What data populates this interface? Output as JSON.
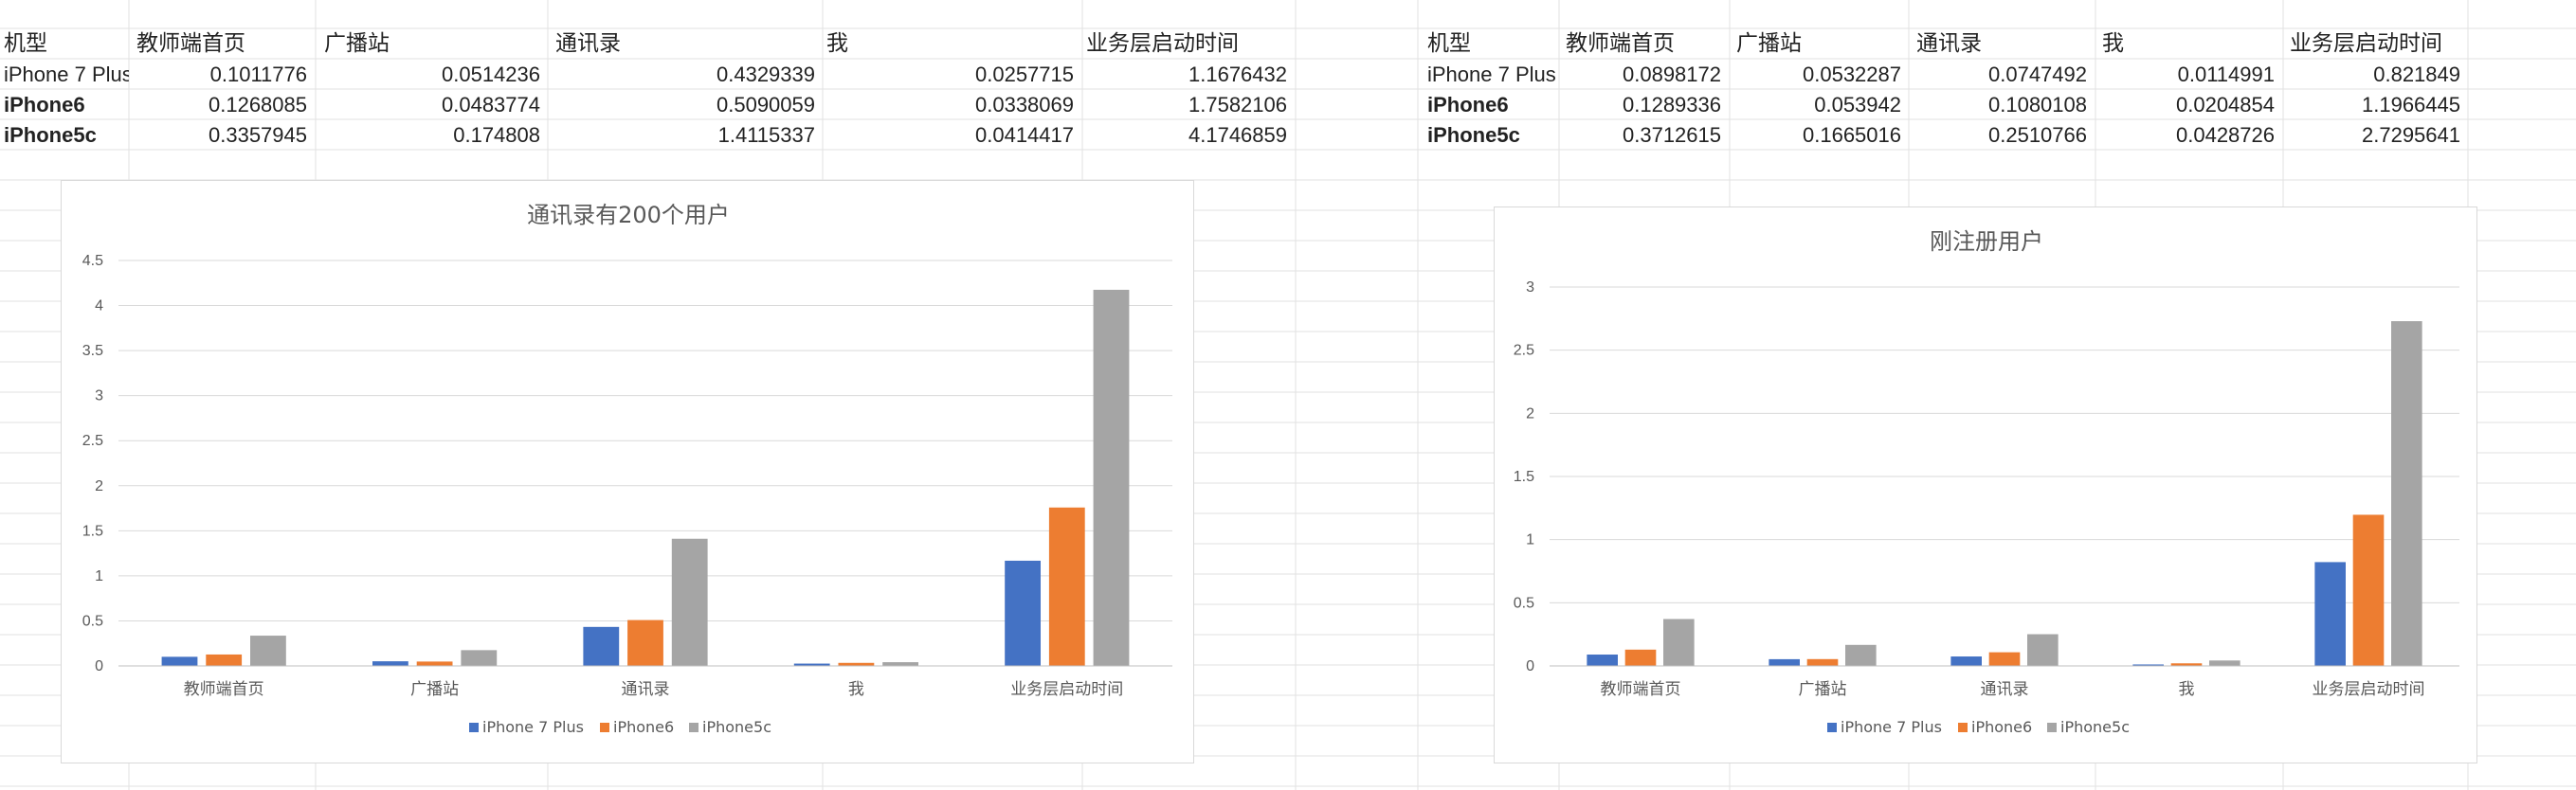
{
  "colors": {
    "iPhone 7 Plus": "#4472c4",
    "iPhone6": "#ed7d31",
    "iPhone5c": "#a5a5a5",
    "grid": "#d9d9d9",
    "cellgrid": "#e2e2e2"
  },
  "tables": [
    {
      "headers": [
        "机型",
        "教师端首页",
        "广播站",
        "通讯录",
        "我",
        "业务层启动时间"
      ],
      "rows": [
        [
          "iPhone 7 Plus",
          "0.1011776",
          "0.0514236",
          "0.4329339",
          "0.0257715",
          "1.1676432"
        ],
        [
          "iPhone6",
          "0.1268085",
          "0.0483774",
          "0.5090059",
          "0.0338069",
          "1.7582106"
        ],
        [
          "iPhone5c",
          "0.3357945",
          "0.174808",
          "1.4115337",
          "0.0414417",
          "4.1746859"
        ]
      ]
    },
    {
      "headers": [
        "机型",
        "教师端首页",
        "广播站",
        "通讯录",
        "我",
        "业务层启动时间"
      ],
      "rows": [
        [
          "iPhone 7 Plus",
          "0.0898172",
          "0.0532287",
          "0.0747492",
          "0.0114991",
          "0.821849"
        ],
        [
          "iPhone6",
          "0.1289336",
          "0.053942",
          "0.1080108",
          "0.0204854",
          "1.1966445"
        ],
        [
          "iPhone5c",
          "0.3712615",
          "0.1665016",
          "0.2510766",
          "0.0428726",
          "2.7295641"
        ]
      ]
    }
  ],
  "chart_data": [
    {
      "type": "bar",
      "title": "通讯录有200个用户",
      "categories": [
        "教师端首页",
        "广播站",
        "通讯录",
        "我",
        "业务层启动时间"
      ],
      "series": [
        {
          "name": "iPhone 7 Plus",
          "values": [
            0.1011776,
            0.0514236,
            0.4329339,
            0.0257715,
            1.1676432
          ]
        },
        {
          "name": "iPhone6",
          "values": [
            0.1268085,
            0.0483774,
            0.5090059,
            0.0338069,
            1.7582106
          ]
        },
        {
          "name": "iPhone5c",
          "values": [
            0.3357945,
            0.174808,
            1.4115337,
            0.0414417,
            4.1746859
          ]
        }
      ],
      "ylim": [
        0,
        4.5
      ],
      "yticks": [
        "0",
        "0.5",
        "1",
        "1.5",
        "2",
        "2.5",
        "3",
        "3.5",
        "4",
        "4.5"
      ],
      "grid": true,
      "legend": "bottom"
    },
    {
      "type": "bar",
      "title": "刚注册用户",
      "categories": [
        "教师端首页",
        "广播站",
        "通讯录",
        "我",
        "业务层启动时间"
      ],
      "series": [
        {
          "name": "iPhone 7 Plus",
          "values": [
            0.0898172,
            0.0532287,
            0.0747492,
            0.0114991,
            0.821849
          ]
        },
        {
          "name": "iPhone6",
          "values": [
            0.1289336,
            0.053942,
            0.1080108,
            0.0204854,
            1.1966445
          ]
        },
        {
          "name": "iPhone5c",
          "values": [
            0.3712615,
            0.1665016,
            0.2510766,
            0.0428726,
            2.7295641
          ]
        }
      ],
      "ylim": [
        0,
        3
      ],
      "yticks": [
        "0",
        "0.5",
        "1",
        "1.5",
        "2",
        "2.5",
        "3"
      ],
      "grid": true,
      "legend": "bottom"
    }
  ]
}
